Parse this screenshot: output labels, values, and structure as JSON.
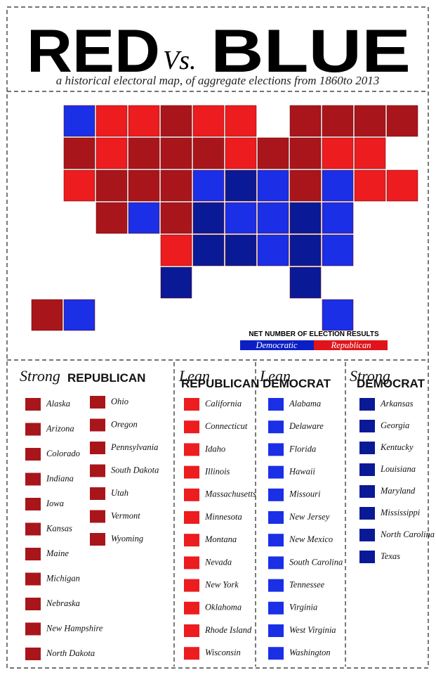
{
  "header": {
    "title_left": "RED",
    "title_mid": "Vs.",
    "title_right": "BLUE",
    "subtitle": "a historical electoral map, of aggregate elections from 1860to 2013"
  },
  "legend": {
    "title": "NET NUMBER OF ELECTION RESULTS",
    "left": "Democratic",
    "right": "Republican",
    "left_color": "#0b1fc4",
    "right_color": "#e0141a"
  },
  "columns": [
    {
      "qualifier": "Strong",
      "label": "REPUBLICAN",
      "color": "#a8161b",
      "states": [
        "Alaska",
        "Arizona",
        "Colorado",
        "Indiana",
        "Iowa",
        "Kansas",
        "Maine",
        "Michigan",
        "Nebraska",
        "New Hampshire",
        "North Dakota",
        "Ohio",
        "Oregon",
        "Pennsylvania",
        "South Dakota",
        "Utah",
        "Vermont",
        "Wyoming"
      ]
    },
    {
      "qualifier": "Lean",
      "label": "REPUBLICAN",
      "color": "#ec1c1f",
      "states": [
        "California",
        "Connecticut",
        "Idaho",
        "Illinois",
        "Massachusetts",
        "Minnesota",
        "Montana",
        "Nevada",
        "New York",
        "Oklahoma",
        "Rhode Island",
        "Wisconsin"
      ]
    },
    {
      "qualifier": "Lean",
      "label": "DEMOCRAT",
      "color": "#1a2fe6",
      "states": [
        "Alabama",
        "Delaware",
        "Florida",
        "Hawaii",
        "Missouri",
        "New Jersey",
        "New Mexico",
        "South Carolina",
        "Tennessee",
        "Virginia",
        "West Virginia",
        "Washington"
      ]
    },
    {
      "qualifier": "Strong",
      "label": "DEMOCRAT",
      "color": "#0a1a96",
      "states": [
        "Arkansas",
        "Georgia",
        "Kentucky",
        "Louisiana",
        "Maryland",
        "Mississippi",
        "North Carolina",
        "Texas"
      ]
    }
  ]
}
